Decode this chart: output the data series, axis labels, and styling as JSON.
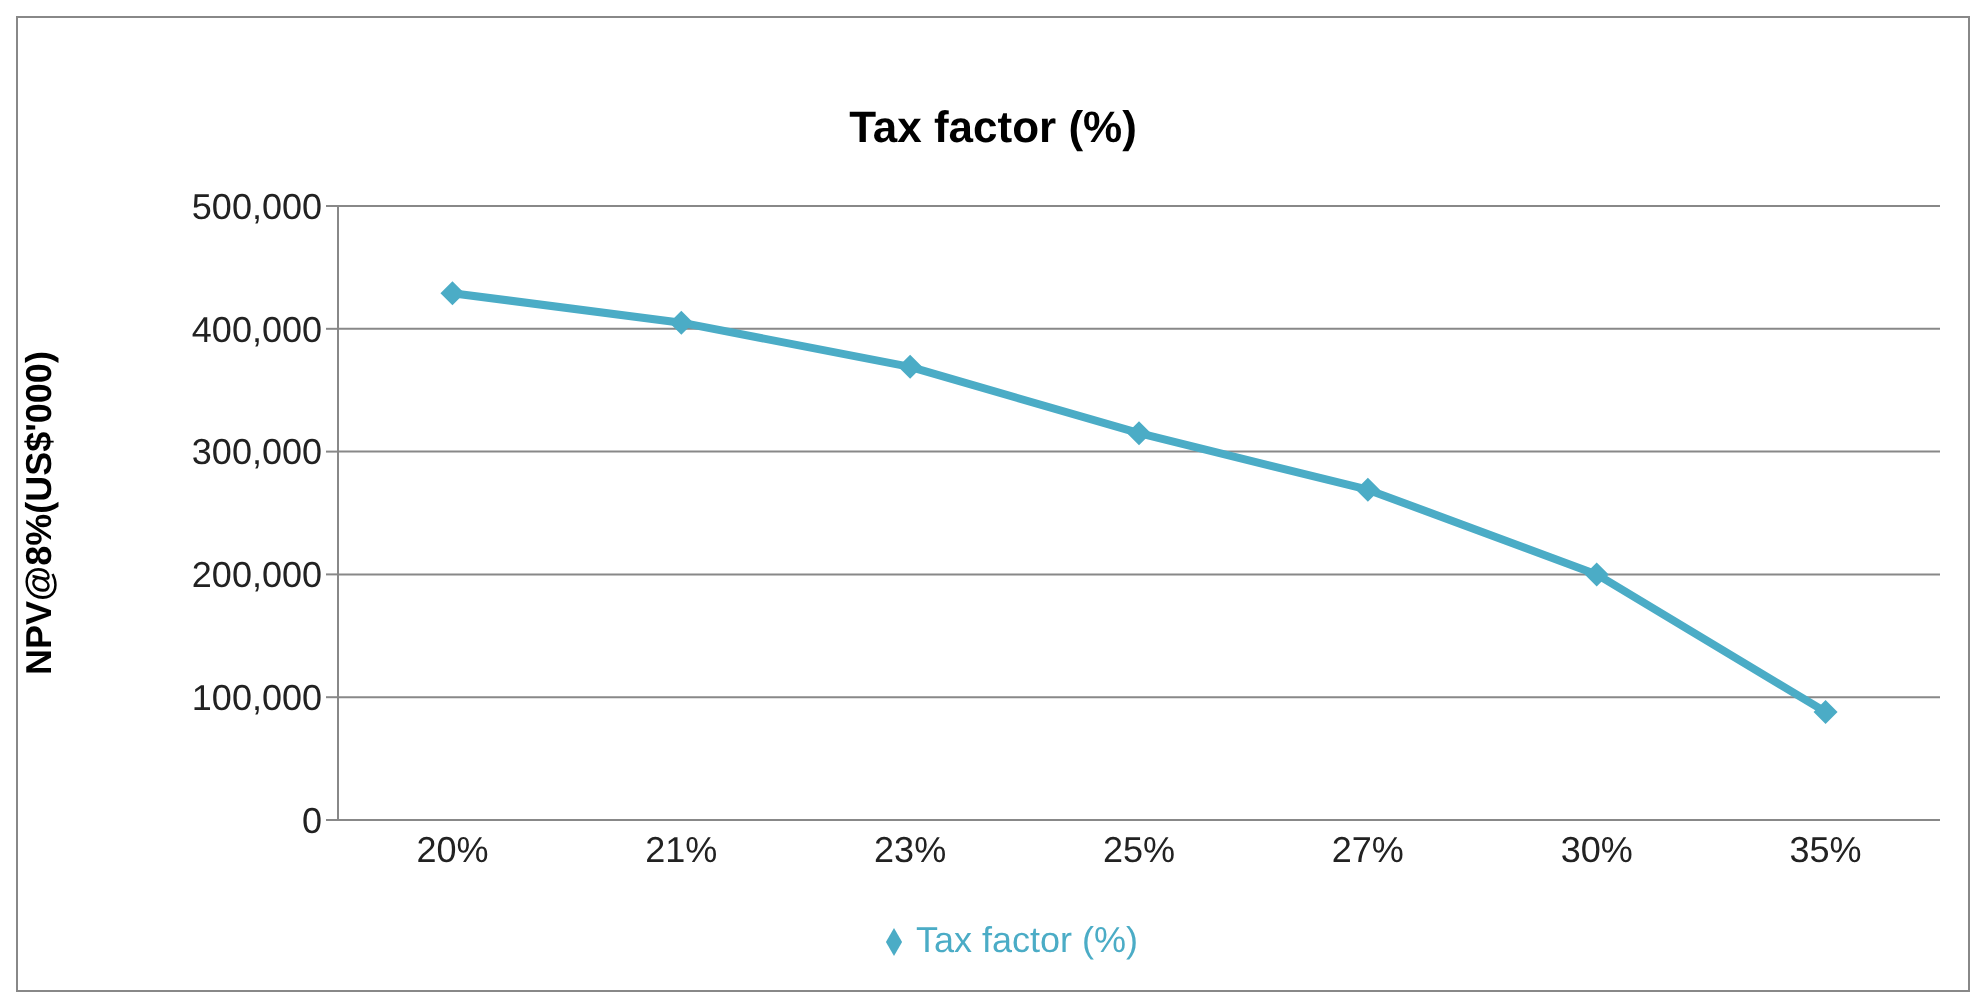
{
  "chart_data": {
    "type": "line",
    "title": "Tax factor (%)",
    "ylabel": "NPV@8%(US$'000)",
    "categories": [
      "20%",
      "21%",
      "23%",
      "25%",
      "27%",
      "30%",
      "35%"
    ],
    "series": [
      {
        "name": "Tax factor (%)",
        "color": "#4bacc6",
        "values": [
          429000,
          405000,
          369000,
          315000,
          269000,
          200000,
          88000
        ]
      }
    ],
    "ylim": [
      0,
      500000
    ],
    "yticks": [
      {
        "value": 0,
        "label": "0"
      },
      {
        "value": 100000,
        "label": "100,000"
      },
      {
        "value": 200000,
        "label": "200,000"
      },
      {
        "value": 300000,
        "label": "300,000"
      },
      {
        "value": 400000,
        "label": "400,000"
      },
      {
        "value": 500000,
        "label": "500,000"
      }
    ],
    "grid": "y",
    "legend": "bottom",
    "marker": "diamond",
    "line_style": "solid"
  }
}
